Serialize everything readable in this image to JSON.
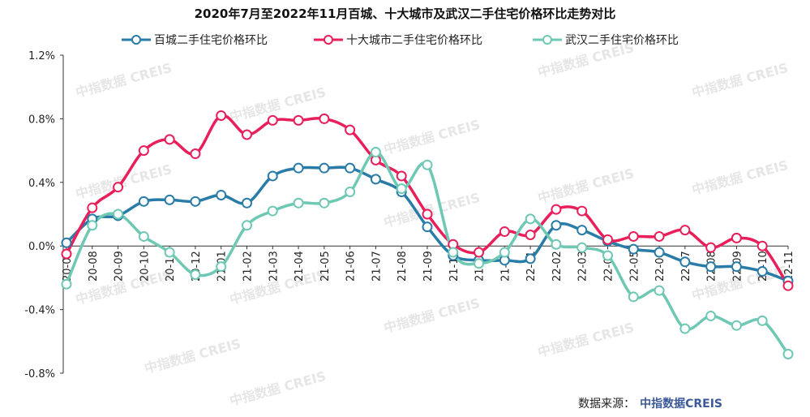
{
  "chart_data": {
    "type": "line",
    "title": "2020年7月至2022年11月百城、十大城市及武汉二手住宅价格环比走势对比",
    "categories": [
      "20-07",
      "20-08",
      "20-09",
      "20-10",
      "20-11",
      "20-12",
      "21-01",
      "21-02",
      "21-03",
      "21-04",
      "21-05",
      "21-06",
      "21-07",
      "21-08",
      "21-09",
      "21-10",
      "21-11",
      "21-12",
      "22-01",
      "22-02",
      "22-03",
      "22-04",
      "22-05",
      "22-06",
      "22-07",
      "22-08",
      "22-09",
      "22-10",
      "22-11"
    ],
    "y_ticks": [
      "1.2%",
      "0.8%",
      "0.4%",
      "0.0%",
      "-0.4%",
      "-0.8%"
    ],
    "ylim": [
      -0.8,
      1.2
    ],
    "legend_position": "top",
    "series": [
      {
        "name": "百城二手住宅价格环比",
        "color": "#2a7ca8",
        "values": [
          0.02,
          0.17,
          0.19,
          0.28,
          0.29,
          0.28,
          0.32,
          0.27,
          0.44,
          0.49,
          0.49,
          0.49,
          0.42,
          0.34,
          0.12,
          -0.06,
          -0.09,
          -0.09,
          -0.08,
          0.13,
          0.1,
          0.03,
          -0.02,
          -0.04,
          -0.1,
          -0.13,
          -0.13,
          -0.16,
          -0.22
        ]
      },
      {
        "name": "十大城市二手住宅价格环比",
        "color": "#e81f5a",
        "values": [
          -0.05,
          0.24,
          0.37,
          0.6,
          0.67,
          0.58,
          0.82,
          0.7,
          0.79,
          0.79,
          0.8,
          0.73,
          0.54,
          0.44,
          0.2,
          0.01,
          -0.04,
          0.09,
          0.07,
          0.23,
          0.22,
          0.04,
          0.06,
          0.06,
          0.1,
          -0.01,
          0.05,
          0.0,
          -0.25
        ]
      },
      {
        "name": "武汉二手住宅价格环比",
        "color": "#6ec8b4",
        "values": [
          -0.24,
          0.13,
          0.2,
          0.06,
          -0.04,
          -0.18,
          -0.13,
          0.13,
          0.22,
          0.27,
          0.27,
          0.34,
          0.59,
          0.36,
          0.51,
          -0.04,
          -0.11,
          -0.04,
          0.17,
          0.01,
          -0.01,
          -0.06,
          -0.32,
          -0.28,
          -0.52,
          -0.44,
          -0.5,
          -0.47,
          -0.68
        ]
      }
    ]
  },
  "watermark": "中指数据 CREIS",
  "source": {
    "label": "数据来源：",
    "brand": "中指数据CREIS"
  }
}
